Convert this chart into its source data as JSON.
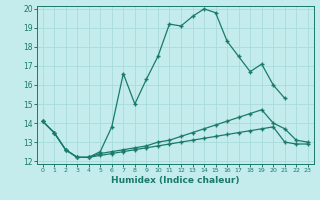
{
  "xlabel": "Humidex (Indice chaleur)",
  "x": [
    0,
    1,
    2,
    3,
    4,
    5,
    6,
    7,
    8,
    9,
    10,
    11,
    12,
    13,
    14,
    15,
    16,
    17,
    18,
    19,
    20,
    21,
    22,
    23
  ],
  "line1": [
    14.1,
    13.5,
    12.6,
    12.2,
    12.2,
    12.5,
    13.8,
    16.6,
    15.0,
    16.3,
    17.5,
    19.2,
    19.1,
    19.6,
    20.0,
    19.8,
    18.3,
    17.5,
    16.7,
    17.1,
    16.0,
    15.3,
    null,
    null
  ],
  "line2": [
    14.1,
    13.5,
    12.6,
    12.2,
    12.2,
    12.4,
    12.5,
    12.6,
    12.7,
    12.8,
    13.0,
    13.1,
    13.3,
    13.5,
    13.7,
    13.9,
    14.1,
    14.3,
    14.5,
    14.7,
    14.0,
    13.7,
    13.1,
    13.0
  ],
  "line3": [
    14.1,
    13.5,
    12.6,
    12.2,
    12.2,
    12.3,
    12.4,
    12.5,
    12.6,
    12.7,
    12.8,
    12.9,
    13.0,
    13.1,
    13.2,
    13.3,
    13.4,
    13.5,
    13.6,
    13.7,
    13.8,
    13.0,
    12.9,
    12.9
  ],
  "line_color": "#1a7a6a",
  "bg_color": "#c5ecec",
  "grid_color": "#a8dcdc",
  "ylim": [
    12,
    20
  ],
  "yticks": [
    12,
    13,
    14,
    15,
    16,
    17,
    18,
    19,
    20
  ],
  "xlim": [
    -0.5,
    23.5
  ],
  "xticks": [
    0,
    1,
    2,
    3,
    4,
    5,
    6,
    7,
    8,
    9,
    10,
    11,
    12,
    13,
    14,
    15,
    16,
    17,
    18,
    19,
    20,
    21,
    22,
    23
  ]
}
